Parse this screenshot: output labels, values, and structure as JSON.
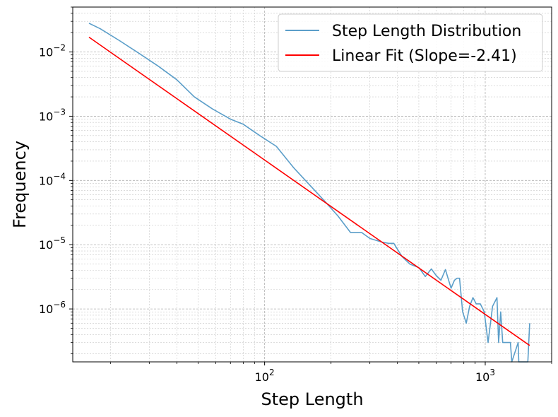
{
  "chart_data": {
    "type": "line",
    "title": "",
    "xlabel": "Step Length",
    "ylabel": "Frequency",
    "xscale": "log",
    "yscale": "log",
    "xlim": [
      13.5,
      2000
    ],
    "ylim": [
      1.5e-07,
      0.05
    ],
    "x_ticks": [
      {
        "value": 100,
        "base": "10",
        "exp": "2"
      },
      {
        "value": 1000,
        "base": "10",
        "exp": "3"
      }
    ],
    "y_ticks": [
      {
        "value": 1e-06,
        "base": "10",
        "exp": "−6"
      },
      {
        "value": 1e-05,
        "base": "10",
        "exp": "−5"
      },
      {
        "value": 0.0001,
        "base": "10",
        "exp": "−4"
      },
      {
        "value": 0.001,
        "base": "10",
        "exp": "−3"
      },
      {
        "value": 0.01,
        "base": "10",
        "exp": "−2"
      }
    ],
    "grid": true,
    "legend_position": "top-right",
    "series": [
      {
        "name": "Step Length Distribution",
        "color": "#5b9ec9",
        "points": [
          [
            16,
            0.028
          ],
          [
            18,
            0.023
          ],
          [
            22,
            0.015
          ],
          [
            27,
            0.0095
          ],
          [
            33,
            0.006
          ],
          [
            40,
            0.0037
          ],
          [
            48,
            0.002
          ],
          [
            58,
            0.0013
          ],
          [
            70,
            0.0009
          ],
          [
            80,
            0.00075
          ],
          [
            95,
            0.0005
          ],
          [
            113,
            0.00034
          ],
          [
            135,
            0.00016
          ],
          [
            160,
            8.5e-05
          ],
          [
            190,
            4.5e-05
          ],
          [
            215,
            2.8e-05
          ],
          [
            245,
            1.55e-05
          ],
          [
            275,
            1.55e-05
          ],
          [
            300,
            1.25e-05
          ],
          [
            340,
            1.1e-05
          ],
          [
            365,
            1.05e-05
          ],
          [
            385,
            1.05e-05
          ],
          [
            420,
            6.5e-06
          ],
          [
            455,
            5e-06
          ],
          [
            500,
            4.4e-06
          ],
          [
            535,
            3.2e-06
          ],
          [
            570,
            4.2e-06
          ],
          [
            600,
            3.3e-06
          ],
          [
            630,
            2.8e-06
          ],
          [
            660,
            4.1e-06
          ],
          [
            700,
            2.1e-06
          ],
          [
            725,
            2.8e-06
          ],
          [
            745,
            3e-06
          ],
          [
            765,
            3e-06
          ],
          [
            790,
            9e-07
          ],
          [
            820,
            6e-07
          ],
          [
            850,
            1.1e-06
          ],
          [
            880,
            1.5e-06
          ],
          [
            910,
            1.2e-06
          ],
          [
            950,
            1.2e-06
          ],
          [
            990,
            9e-07
          ],
          [
            1030,
            3e-07
          ],
          [
            1080,
            1.1e-06
          ],
          [
            1130,
            1.5e-06
          ],
          [
            1150,
            3e-07
          ],
          [
            1175,
            9e-07
          ],
          [
            1200,
            3e-07
          ],
          [
            1250,
            3e-07
          ],
          [
            1300,
            3e-07
          ],
          [
            1320,
            1.5e-07
          ],
          [
            1410,
            3e-07
          ],
          [
            1420,
            1.5e-07
          ],
          [
            1560,
            1.5e-07
          ],
          [
            1590,
            6e-07
          ]
        ]
      },
      {
        "name": "Linear Fit (Slope=-2.41)",
        "color": "#ff0000",
        "points": [
          [
            16,
            0.017
          ],
          [
            1590,
            2.7e-07
          ]
        ]
      }
    ]
  }
}
